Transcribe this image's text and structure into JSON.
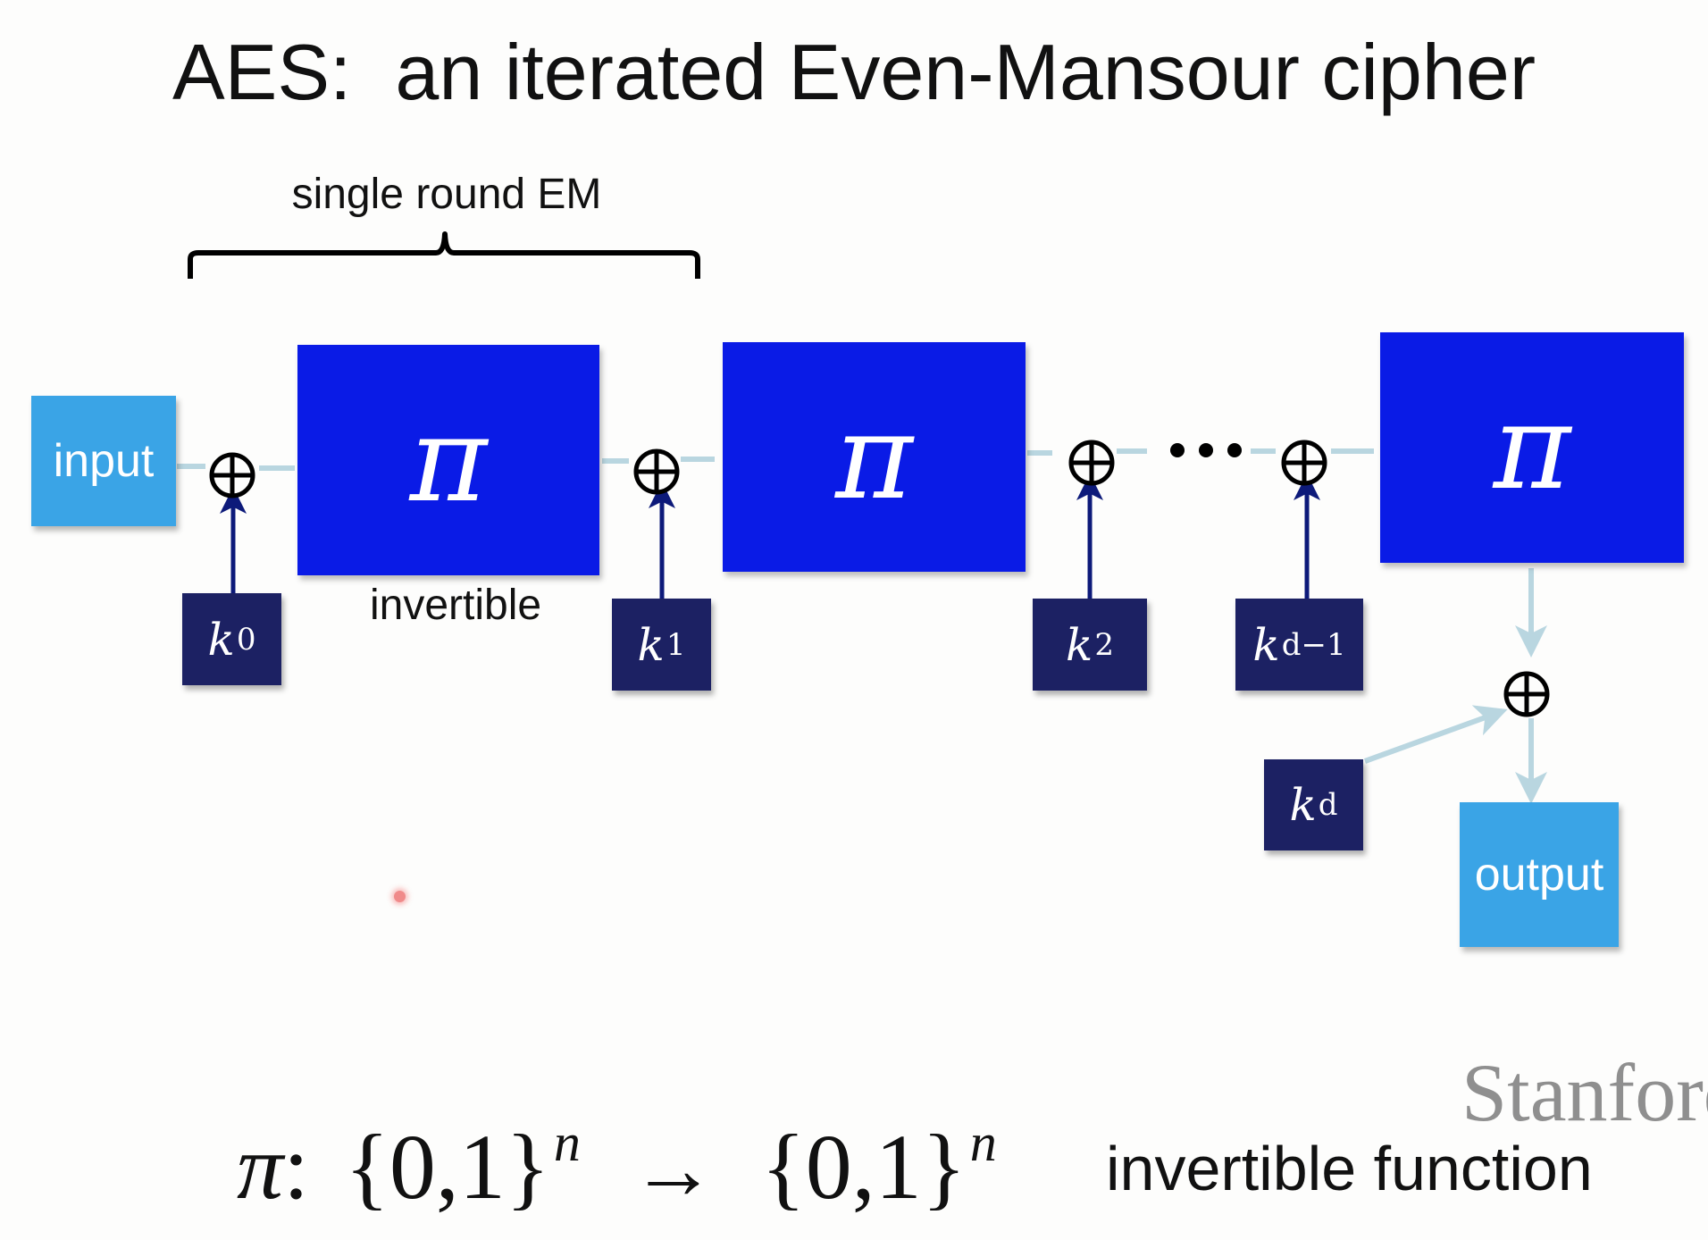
{
  "slide": {
    "title": "AES:  an iterated Even-Mansour cipher",
    "brace_label": "single round EM",
    "invertible_label": "invertible",
    "input_label": "input",
    "output_label": "output",
    "permutation_symbol": "π",
    "dots": "•••",
    "keys": {
      "k0": {
        "base": "k",
        "sub": "0"
      },
      "k1": {
        "base": "k",
        "sub": "1"
      },
      "k2": {
        "base": "k",
        "sub": "2"
      },
      "kdm1": {
        "base": "k",
        "sub": "d−1"
      },
      "kd": {
        "base": "k",
        "sub": "d"
      }
    },
    "formula": {
      "pi": "π",
      "colon": ":",
      "domain": "{0,1}",
      "exp": "n",
      "arrow": "→",
      "codomain": "{0,1}",
      "exp2": "n",
      "description": "invertible function"
    },
    "watermark": "Stanford",
    "colors": {
      "light_box": "#3aa4e6",
      "pi_box": "#0a1be6",
      "key_box": "#1c2163",
      "dark_arrow": "#0d1a7a",
      "light_line": "#b9d6e0"
    }
  }
}
